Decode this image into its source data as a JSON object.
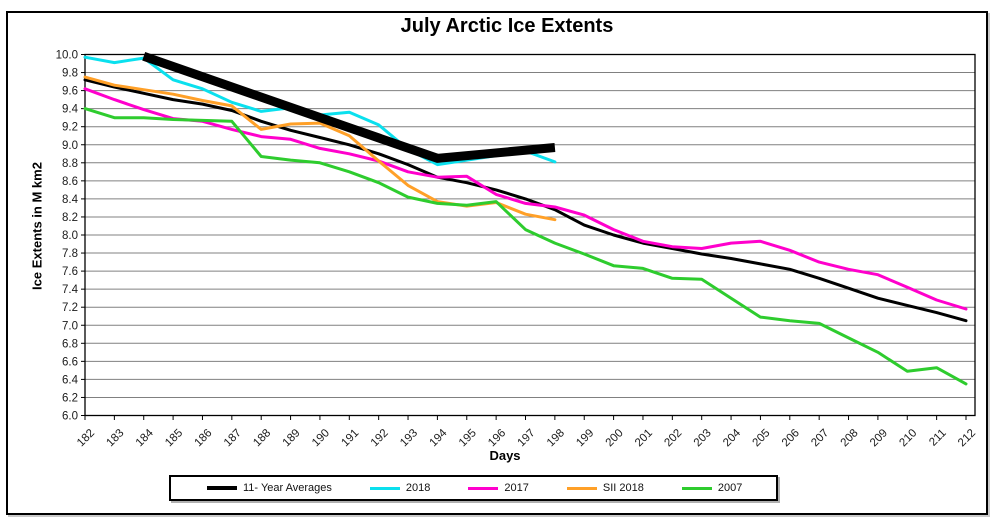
{
  "figure": {
    "title": "July Arctic Ice Extents"
  },
  "axes": {
    "x_title": "Days",
    "y_title": "Ice Extents in M km2"
  },
  "colors": {
    "grid": "#808080",
    "plot_border": "#000000",
    "tick_text": "#1a1a1a",
    "figure_border": "#000000"
  },
  "chart_data": {
    "type": "line",
    "title": "July Arctic Ice Extents",
    "xlabel": "Days",
    "ylabel": "Ice Extents in M km2",
    "ylim": [
      6.0,
      10.0
    ],
    "ytick_step": 0.2,
    "grid": "horizontal",
    "legend_position": "bottom",
    "days": [
      182,
      183,
      184,
      185,
      186,
      187,
      188,
      189,
      190,
      191,
      192,
      193,
      194,
      195,
      196,
      197,
      198,
      199,
      200,
      201,
      202,
      203,
      204,
      205,
      206,
      207,
      208,
      209,
      210,
      211,
      212
    ],
    "series": [
      {
        "name": "11- Year Averages",
        "color": "#000000",
        "stroke_width": 3,
        "start_day": 182,
        "values": [
          9.72,
          9.64,
          9.57,
          9.5,
          9.45,
          9.38,
          9.26,
          9.16,
          9.08,
          9.0,
          8.9,
          8.78,
          8.64,
          8.58,
          8.5,
          8.4,
          8.28,
          8.11,
          8.0,
          7.91,
          7.85,
          7.79,
          7.74,
          7.68,
          7.62,
          7.52,
          7.41,
          7.3,
          7.22,
          7.14,
          7.05
        ]
      },
      {
        "name": "2018",
        "color": "#0ae0ee",
        "stroke_width": 3,
        "start_day": 182,
        "values": [
          9.97,
          9.91,
          9.96,
          9.72,
          9.62,
          9.47,
          9.37,
          9.41,
          9.33,
          9.36,
          9.22,
          8.95,
          8.78,
          8.83,
          8.88,
          8.93,
          8.81
        ]
      },
      {
        "name": "2017",
        "color": "#ff00cc",
        "stroke_width": 3,
        "start_day": 182,
        "values": [
          9.62,
          9.5,
          9.39,
          9.29,
          9.26,
          9.17,
          9.09,
          9.06,
          8.96,
          8.9,
          8.82,
          8.7,
          8.64,
          8.65,
          8.45,
          8.35,
          8.31,
          8.22,
          8.06,
          7.93,
          7.87,
          7.85,
          7.91,
          7.93,
          7.83,
          7.7,
          7.62,
          7.56,
          7.42,
          7.28,
          7.18
        ]
      },
      {
        "name": "SII 2018",
        "color": "#ffa028",
        "stroke_width": 3,
        "start_day": 182,
        "values": [
          9.75,
          9.66,
          9.61,
          9.56,
          9.49,
          9.43,
          9.17,
          9.23,
          9.24,
          9.1,
          8.82,
          8.55,
          8.37,
          8.32,
          8.36,
          8.23,
          8.17
        ]
      },
      {
        "name": "2007",
        "color": "#2ecc2e",
        "stroke_width": 3,
        "start_day": 182,
        "values": [
          9.4,
          9.3,
          9.3,
          9.28,
          9.27,
          9.26,
          8.87,
          8.83,
          8.8,
          8.7,
          8.58,
          8.42,
          8.35,
          8.33,
          8.37,
          8.06,
          7.91,
          7.79,
          7.66,
          7.63,
          7.52,
          7.51,
          7.3,
          7.09,
          7.05,
          7.02,
          6.86,
          6.7,
          6.49,
          6.53,
          6.35
        ]
      }
    ],
    "trend_line": {
      "name": "thick-trend-segment",
      "color": "#000000",
      "stroke_width": 9,
      "points": [
        [
          184,
          9.98
        ],
        [
          194,
          8.85
        ],
        [
          198,
          8.97
        ]
      ]
    }
  }
}
